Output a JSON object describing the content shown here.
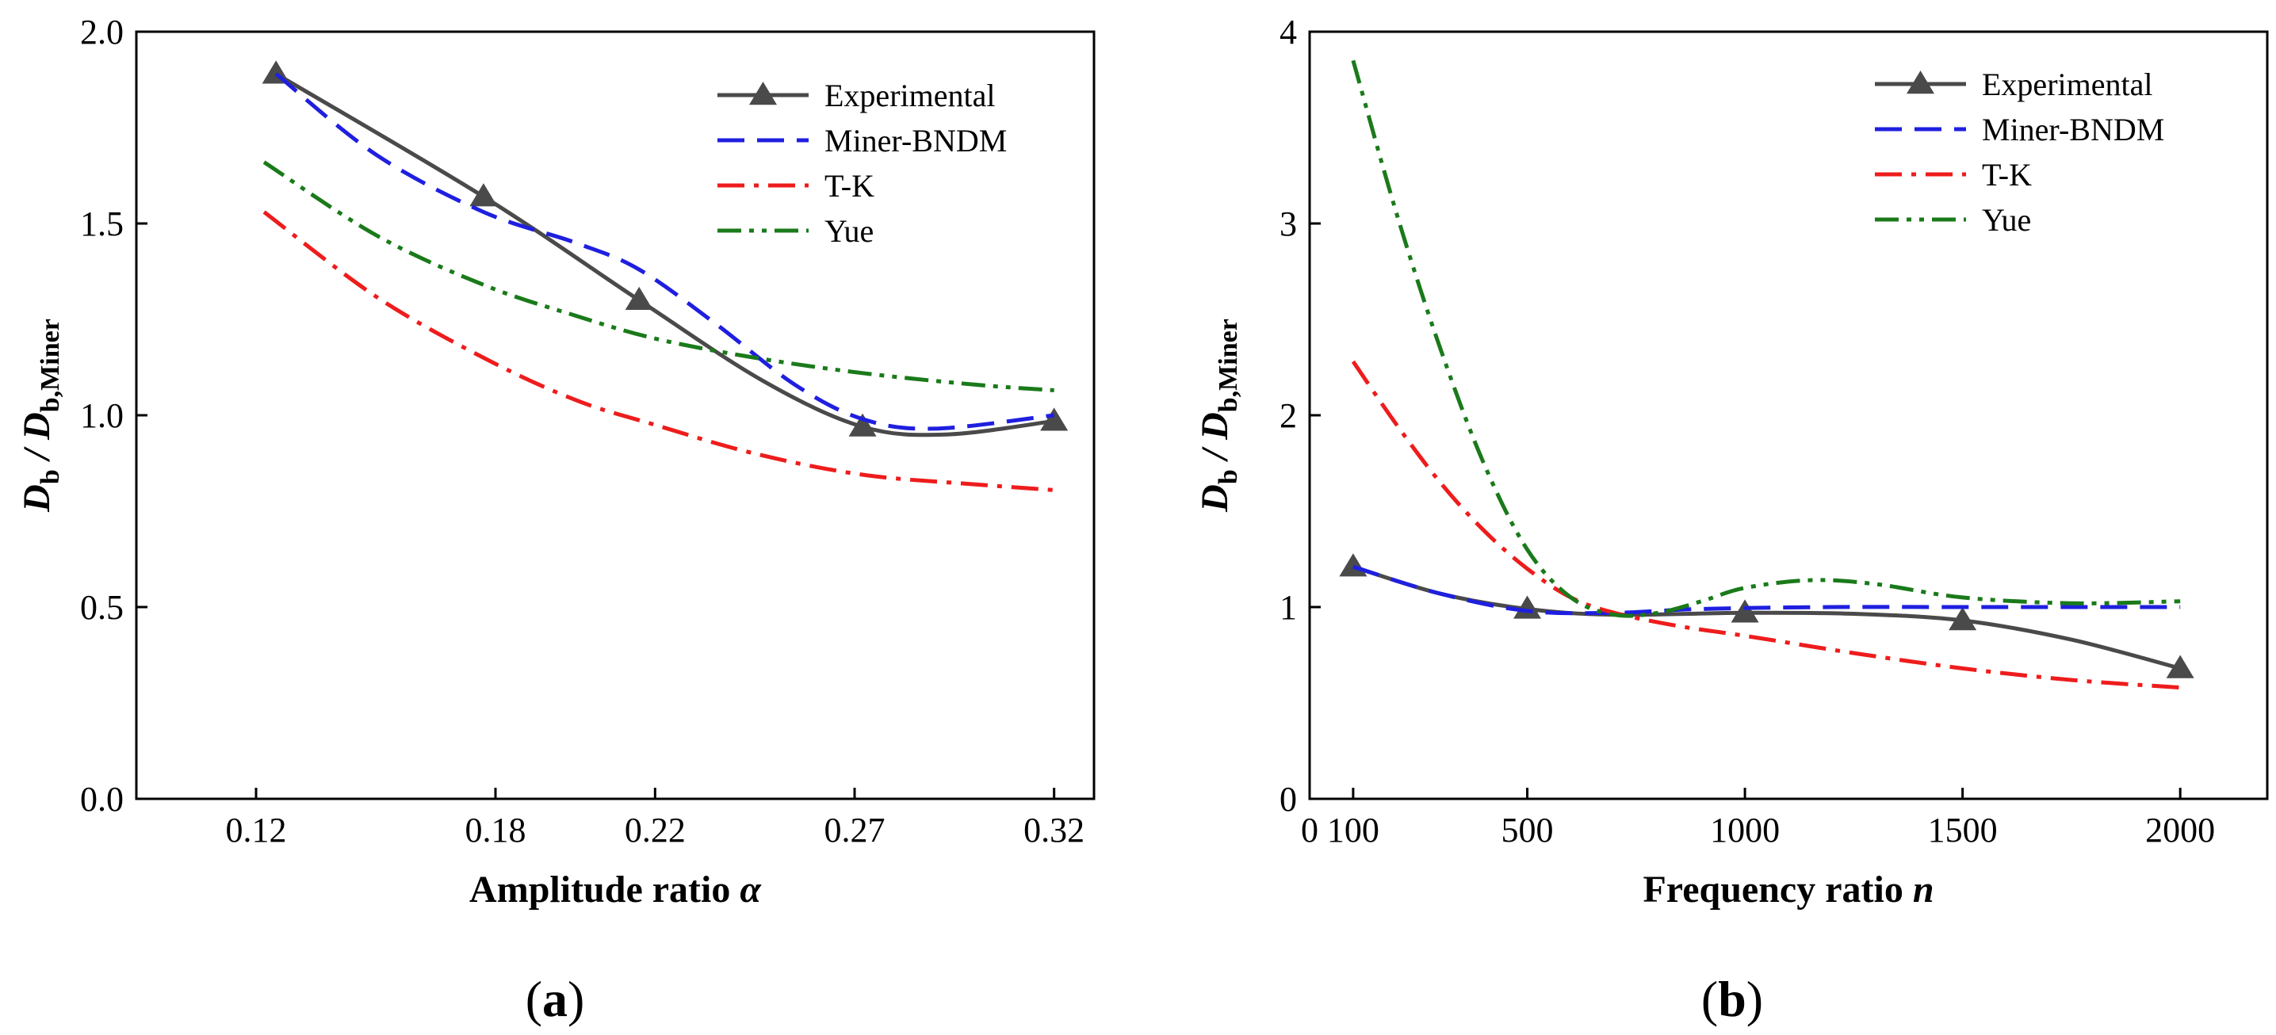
{
  "chart_data": [
    {
      "type": "line",
      "panel_label": "a",
      "xlabel": "Amplitude ratio",
      "xlabel_symbol": "α",
      "ylabel": "D",
      "ylabel_sub1": "b",
      "ylabel_mid": " / D",
      "ylabel_sub2": "b,Miner",
      "xlim": [
        0.09,
        0.33
      ],
      "ylim": [
        0.0,
        2.0
      ],
      "x_ticks": [
        0.12,
        0.18,
        0.22,
        0.27,
        0.32
      ],
      "x_tick_labels": [
        "0.12",
        "0.18",
        "0.22",
        "0.27",
        "0.32"
      ],
      "y_ticks": [
        0.0,
        0.5,
        1.0,
        1.5,
        2.0
      ],
      "y_tick_labels": [
        "0.0",
        "0.5",
        "1.0",
        "1.5",
        "2.0"
      ],
      "legend_position": "top-right",
      "series": [
        {
          "name": "Experimental",
          "color": "#4a4a4a",
          "style": "solid",
          "marker": "triangle",
          "x": [
            0.125,
            0.177,
            0.216,
            0.247,
            0.272,
            0.293,
            0.32
          ],
          "y": [
            1.89,
            1.57,
            1.3,
            1.09,
            0.97,
            0.95,
            0.985
          ],
          "markers_x": [
            0.125,
            0.177,
            0.216,
            0.272,
            0.32
          ],
          "markers_y": [
            1.89,
            1.57,
            1.3,
            0.97,
            0.985
          ]
        },
        {
          "name": "Miner-BNDM",
          "color": "#1f1fe0",
          "style": "dashed",
          "x": [
            0.125,
            0.15,
            0.177,
            0.2,
            0.216,
            0.235,
            0.255,
            0.272,
            0.29,
            0.32
          ],
          "y": [
            1.89,
            1.68,
            1.53,
            1.45,
            1.38,
            1.24,
            1.08,
            0.99,
            0.965,
            1.0
          ]
        },
        {
          "name": "T-K",
          "color": "#ee1c1c",
          "style": "dashdot",
          "x": [
            0.122,
            0.15,
            0.177,
            0.2,
            0.22,
            0.245,
            0.272,
            0.3,
            0.32
          ],
          "y": [
            1.53,
            1.31,
            1.15,
            1.04,
            0.975,
            0.9,
            0.845,
            0.82,
            0.805
          ]
        },
        {
          "name": "Yue",
          "color": "#1a7a1a",
          "style": "dashdotdot",
          "x": [
            0.122,
            0.15,
            0.177,
            0.2,
            0.22,
            0.245,
            0.272,
            0.3,
            0.32
          ],
          "y": [
            1.66,
            1.47,
            1.34,
            1.26,
            1.2,
            1.15,
            1.11,
            1.08,
            1.065
          ]
        }
      ]
    },
    {
      "type": "line",
      "panel_label": "b",
      "xlabel": "Frequency ratio",
      "xlabel_symbol": "n",
      "ylabel": "D",
      "ylabel_sub1": "b",
      "ylabel_mid": " / D",
      "ylabel_sub2": "b,Miner",
      "xlim": [
        0,
        2200
      ],
      "ylim": [
        0,
        4
      ],
      "x_ticks": [
        0,
        100,
        500,
        1000,
        1500,
        2000
      ],
      "x_tick_labels": [
        "0",
        "100",
        "500",
        "1000",
        "1500",
        "2000"
      ],
      "y_ticks": [
        0,
        1,
        2,
        3,
        4
      ],
      "y_tick_labels": [
        "0",
        "1",
        "2",
        "3",
        "4"
      ],
      "legend_position": "top-right",
      "series": [
        {
          "name": "Experimental",
          "color": "#4a4a4a",
          "style": "solid",
          "marker": "triangle",
          "x": [
            100,
            300,
            500,
            700,
            1000,
            1250,
            1500,
            1750,
            2000
          ],
          "y": [
            1.21,
            1.07,
            0.99,
            0.96,
            0.97,
            0.965,
            0.93,
            0.83,
            0.68
          ],
          "markers_x": [
            100,
            500,
            1000,
            1500,
            2000
          ],
          "markers_y": [
            1.21,
            0.99,
            0.97,
            0.93,
            0.68
          ]
        },
        {
          "name": "Miner-BNDM",
          "color": "#1f1fe0",
          "style": "dashed",
          "x": [
            100,
            300,
            500,
            700,
            900,
            1200,
            1500,
            2000
          ],
          "y": [
            1.21,
            1.07,
            0.98,
            0.97,
            0.99,
            1.0,
            1.0,
            1.0
          ]
        },
        {
          "name": "T-K",
          "color": "#ee1c1c",
          "style": "dashdot",
          "x": [
            100,
            200,
            300,
            400,
            500,
            600,
            700,
            850,
            1000,
            1250,
            1500,
            1750,
            2000
          ],
          "y": [
            2.28,
            1.95,
            1.65,
            1.4,
            1.2,
            1.05,
            0.97,
            0.9,
            0.85,
            0.76,
            0.68,
            0.62,
            0.58
          ]
        },
        {
          "name": "Yue",
          "color": "#1a7a1a",
          "style": "dashdotdot",
          "x": [
            100,
            200,
            300,
            400,
            500,
            600,
            700,
            800,
            900,
            1000,
            1150,
            1300,
            1500,
            1750,
            2000
          ],
          "y": [
            3.85,
            3.05,
            2.35,
            1.75,
            1.3,
            1.05,
            0.96,
            0.97,
            1.03,
            1.1,
            1.14,
            1.12,
            1.05,
            1.02,
            1.03
          ]
        }
      ]
    }
  ]
}
